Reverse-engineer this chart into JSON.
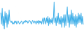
{
  "line_color": "#3daee8",
  "background_color": "#ffffff",
  "linewidth": 0.7,
  "figsize": [
    1.2,
    0.45
  ],
  "dpi": 100,
  "values": [
    2.0,
    -1.5,
    3.5,
    -2.0,
    1.0,
    -3.0,
    2.5,
    -1.0,
    2.0,
    -2.5,
    1.5,
    -1.5,
    3.0,
    -0.5,
    -0.5,
    -1.0,
    -0.5,
    -1.5,
    -1.0,
    -1.5,
    -0.5,
    -1.0,
    -0.5,
    -1.5,
    -1.0,
    -0.5,
    -1.0,
    -1.5,
    -1.2,
    -0.8,
    -0.5,
    -1.0,
    -1.5,
    -0.8,
    -0.5,
    -1.0,
    -0.3,
    -0.8,
    -0.5,
    -1.2,
    -0.8,
    -0.3,
    -0.5,
    -0.8,
    -1.5,
    -0.8,
    -0.3,
    -0.8,
    -1.2,
    -0.5,
    -0.8,
    -1.5,
    -0.5,
    -1.0,
    -0.3,
    -1.5,
    -0.5,
    -1.0,
    -0.5,
    -1.5,
    -0.3,
    0.5,
    -1.5,
    0.5,
    -0.5,
    -1.5,
    0.5,
    -1.0,
    1.0,
    -2.0,
    0.5,
    -1.5,
    0.0,
    -1.0,
    0.5,
    -1.5,
    0.5,
    5.5,
    -1.0,
    0.5,
    -2.0,
    1.0,
    -1.0,
    2.0,
    -1.5,
    0.5,
    -1.5,
    1.0,
    -2.5,
    0.5,
    -1.0,
    1.5,
    -2.5,
    1.5,
    -2.0,
    1.0,
    4.0,
    -1.0,
    1.5,
    -2.5,
    1.5,
    -1.5,
    3.0,
    -1.5,
    2.0,
    -1.5,
    1.0,
    -2.0,
    1.5,
    -2.5,
    1.0,
    -1.5,
    2.0,
    -1.0,
    1.5,
    -1.0,
    2.0,
    -1.5,
    1.0,
    -1.5
  ]
}
